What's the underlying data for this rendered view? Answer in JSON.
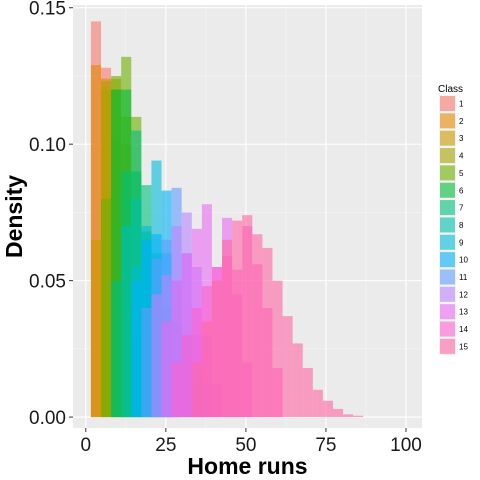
{
  "chart_data": {
    "type": "histogram",
    "title": "",
    "xlabel": "Home runs",
    "ylabel": "Density",
    "xlim": [
      -4,
      105
    ],
    "ylim": [
      -0.004,
      0.151
    ],
    "x_ticks": [
      0,
      25,
      50,
      75,
      100
    ],
    "x_tick_labels": [
      "0",
      "25",
      "50",
      "75",
      "100"
    ],
    "y_ticks": [
      0,
      0.05,
      0.1,
      0.15
    ],
    "y_tick_labels": [
      "0.00",
      "0.05",
      "0.10",
      "0.15"
    ],
    "grid": true,
    "bin_width": 3.15,
    "bar_opacity": 0.6,
    "legend_title": "Class",
    "legend_position": "right",
    "series": [
      {
        "name": "1",
        "color": "#F8766D",
        "x_start": 1.6,
        "densities": [
          0.145,
          0.128,
          0.062,
          0.04
        ]
      },
      {
        "name": "2",
        "color": "#E58700",
        "x_start": 1.6,
        "densities": [
          0.129,
          0.124,
          0.102,
          0.052
        ]
      },
      {
        "name": "3",
        "color": "#C99800",
        "x_start": 1.6,
        "densities": [
          0.065,
          0.12,
          0.124,
          0.1,
          0.028
        ]
      },
      {
        "name": "4",
        "color": "#A3A500",
        "x_start": 4.75,
        "densities": [
          0.123,
          0.12,
          0.11,
          0.055
        ]
      },
      {
        "name": "5",
        "color": "#6BB100",
        "x_start": 4.75,
        "densities": [
          0.08,
          0.125,
          0.132,
          0.11,
          0.065,
          0.03
        ]
      },
      {
        "name": "6",
        "color": "#00BA38",
        "x_start": 7.9,
        "densities": [
          0.12,
          0.12,
          0.09,
          0.068,
          0.045,
          0.022
        ]
      },
      {
        "name": "7",
        "color": "#00BF7D",
        "x_start": 7.9,
        "densities": [
          0.05,
          0.09,
          0.105,
          0.085,
          0.06,
          0.04,
          0.02
        ]
      },
      {
        "name": "8",
        "color": "#00C0AF",
        "x_start": 11.05,
        "densities": [
          0.07,
          0.08,
          0.065,
          0.05,
          0.03
        ]
      },
      {
        "name": "9",
        "color": "#00BCD8",
        "x_start": 14.2,
        "densities": [
          0.055,
          0.07,
          0.094,
          0.06,
          0.035
        ]
      },
      {
        "name": "10",
        "color": "#00B0F6",
        "x_start": 14.2,
        "densities": [
          0.05,
          0.065,
          0.067,
          0.083,
          0.05,
          0.03,
          0.015
        ]
      },
      {
        "name": "11",
        "color": "#619CFF",
        "x_start": 17.35,
        "densities": [
          0.04,
          0.058,
          0.065,
          0.084,
          0.06,
          0.03,
          0.012
        ]
      },
      {
        "name": "12",
        "color": "#B983FF",
        "x_start": 20.5,
        "densities": [
          0.045,
          0.052,
          0.07,
          0.075,
          0.055,
          0.03,
          0.012
        ]
      },
      {
        "name": "13",
        "color": "#E76BF3",
        "x_start": 23.65,
        "densities": [
          0.035,
          0.05,
          0.06,
          0.069,
          0.078,
          0.055,
          0.073,
          0.045,
          0.02
        ]
      },
      {
        "name": "14",
        "color": "#FD61D1",
        "x_start": 26.8,
        "densities": [
          0.02,
          0.03,
          0.04,
          0.048,
          0.055,
          0.059,
          0.054,
          0.07,
          0.056,
          0.04,
          0.018
        ]
      },
      {
        "name": "15",
        "color": "#FF67A4",
        "x_start": 33.1,
        "densities": [
          0.02,
          0.035,
          0.05,
          0.065,
          0.072,
          0.074,
          0.067,
          0.062,
          0.05,
          0.037,
          0.027,
          0.018,
          0.01,
          0.006,
          0.003,
          0.001,
          0.0005
        ]
      }
    ]
  }
}
